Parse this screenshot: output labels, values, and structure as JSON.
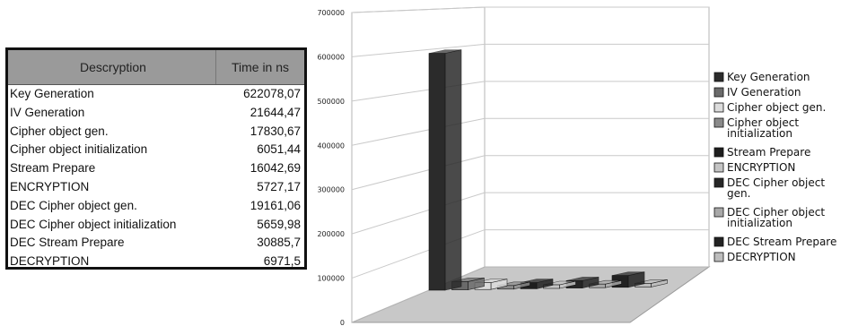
{
  "table": {
    "header_desc": "Descryption",
    "header_time": "Time in ns",
    "rows": [
      {
        "label": "Key Generation",
        "value": "622078,07"
      },
      {
        "label": "IV Generation",
        "value": "21644,47"
      },
      {
        "label": "Cipher object gen.",
        "value": "17830,67"
      },
      {
        "label": "Cipher object initialization",
        "value": "6051,44"
      },
      {
        "label": "Stream Prepare",
        "value": "16042,69"
      },
      {
        "label": "ENCRYPTION",
        "value": "5727,17"
      },
      {
        "label": "DEC Cipher object gen.",
        "value": "19161,06"
      },
      {
        "label": "DEC Cipher object initialization",
        "value": "5659,98"
      },
      {
        "label": "DEC Stream Prepare",
        "value": "30885,7"
      },
      {
        "label": "DECRYPTION",
        "value": "6971,5"
      }
    ]
  },
  "chart_data": {
    "type": "bar",
    "style": "3d",
    "categories": [
      "Key Generation",
      "IV Generation",
      "Cipher object gen.",
      "Cipher object initialization",
      "Stream Prepare",
      "ENCRYPTION",
      "DEC Cipher object gen.",
      "DEC Cipher object initialization",
      "DEC Stream Prepare",
      "DECRYPTION"
    ],
    "values": [
      622078.07,
      21644.47,
      17830.67,
      6051.44,
      16042.69,
      5727.17,
      19161.06,
      5659.98,
      30885.7,
      6971.5
    ],
    "ylim": [
      0,
      700000
    ],
    "yticks": [
      "0",
      "100000",
      "200000",
      "300000",
      "400000",
      "500000",
      "600000",
      "700000"
    ],
    "grid": true,
    "legend_position": "right",
    "legend": [
      {
        "lines": [
          "Key Generation"
        ],
        "color": "#2b2b2b"
      },
      {
        "lines": [
          "IV Generation"
        ],
        "color": "#6a6a6a"
      },
      {
        "lines": [
          "Cipher object gen."
        ],
        "color": "#dcdcdc"
      },
      {
        "lines": [
          "Cipher object",
          "initialization"
        ],
        "color": "#8a8a8a"
      },
      {
        "lines": [
          "Stream Prepare"
        ],
        "color": "#1e1e1e"
      },
      {
        "lines": [
          "ENCRYPTION"
        ],
        "color": "#c4c4c4"
      },
      {
        "lines": [
          "DEC Cipher object",
          "gen."
        ],
        "color": "#262626"
      },
      {
        "lines": [
          "DEC Cipher object",
          "initialization"
        ],
        "color": "#a8a8a8"
      },
      {
        "lines": [
          "DEC Stream Prepare"
        ],
        "color": "#222222"
      },
      {
        "lines": [
          "DECRYPTION"
        ],
        "color": "#bdbdbd"
      }
    ]
  }
}
